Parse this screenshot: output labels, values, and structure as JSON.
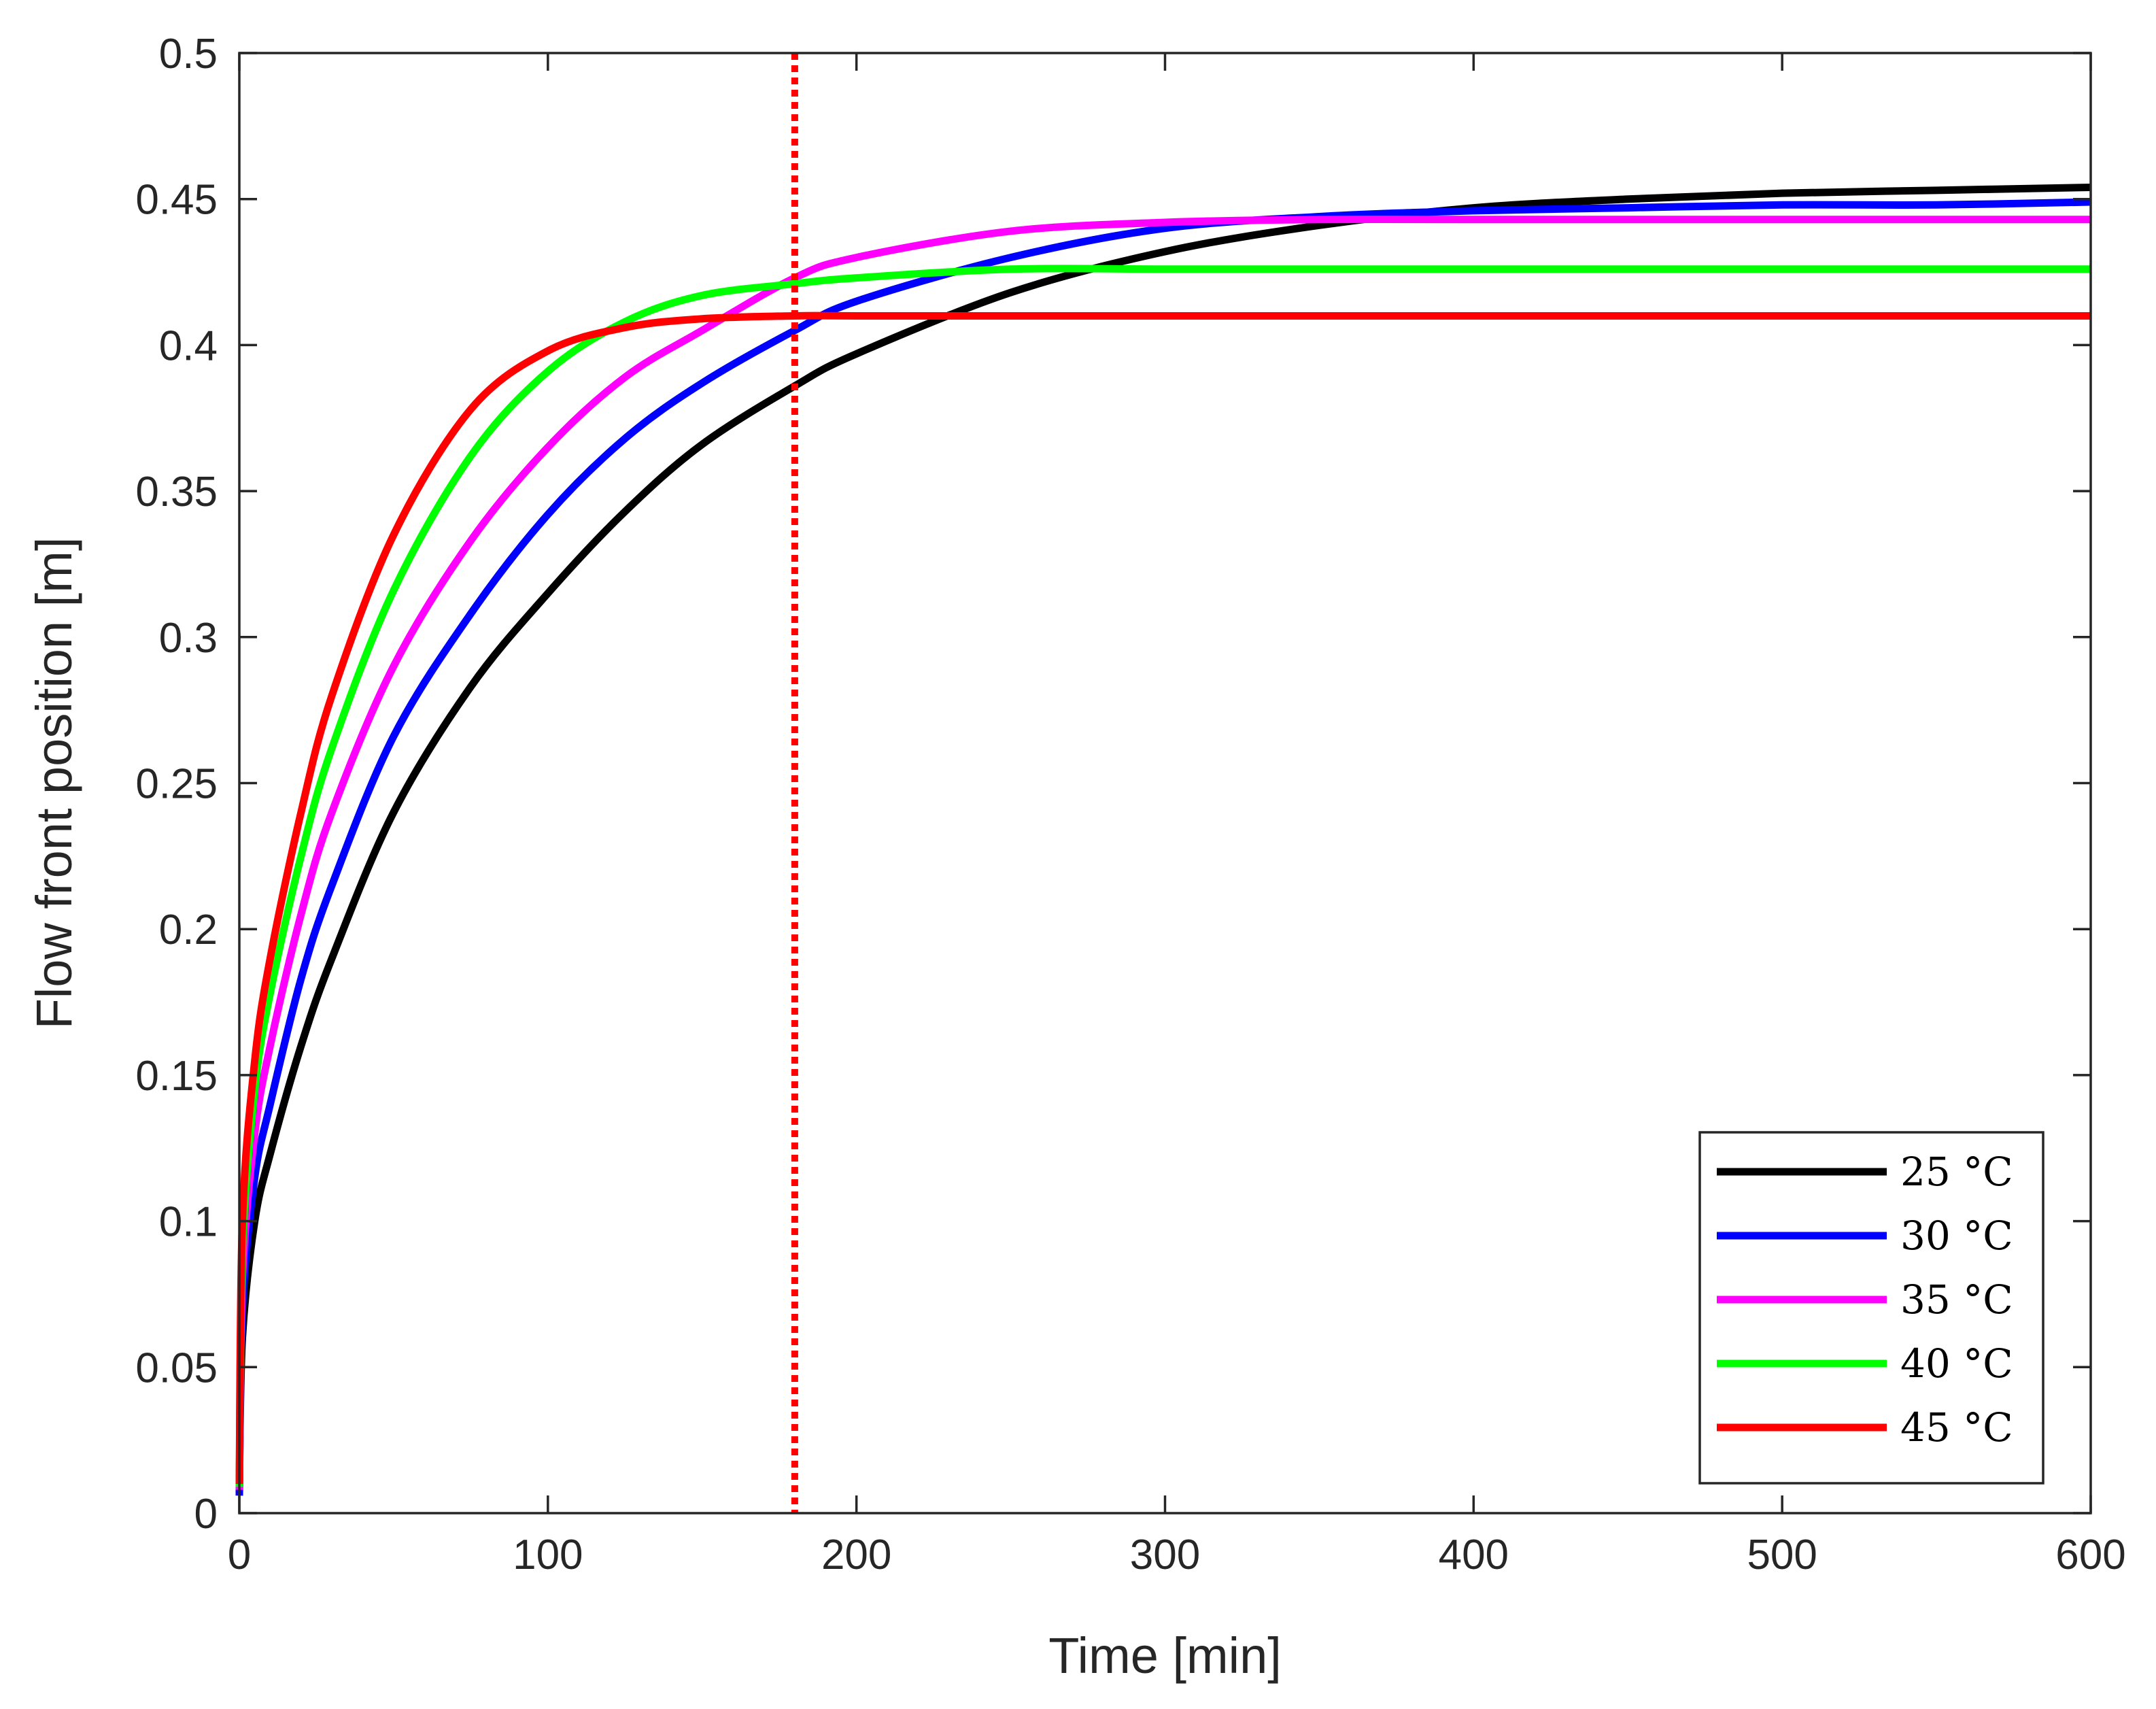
{
  "chart_data": {
    "type": "line",
    "title": "",
    "xlabel": "Time [min]",
    "ylabel": "Flow front position [m]",
    "xlim": [
      0,
      600
    ],
    "ylim": [
      0,
      0.5
    ],
    "xticks": [
      0,
      100,
      200,
      300,
      400,
      500,
      600
    ],
    "xtick_labels": [
      "0",
      "100",
      "200",
      "300",
      "400",
      "500",
      "600"
    ],
    "yticks": [
      0,
      0.05,
      0.1,
      0.15,
      0.2,
      0.25,
      0.3,
      0.35,
      0.4,
      0.45,
      0.5
    ],
    "ytick_labels": [
      "0",
      "0.05",
      "0.1",
      "0.15",
      "0.2",
      "0.25",
      "0.3",
      "0.35",
      "0.4",
      "0.45",
      "0.5"
    ],
    "grid": false,
    "legend_position": "bottom-right",
    "vertical_reference_line": {
      "x": 180,
      "color": "#ff0000",
      "style": "dotted"
    },
    "series": [
      {
        "name": "25 °C",
        "color": "#000000",
        "x": [
          0,
          1,
          5,
          10,
          20,
          30,
          50,
          75,
          100,
          125,
          150,
          180,
          200,
          250,
          300,
          350,
          400,
          450,
          500,
          550,
          600
        ],
        "values": [
          0.007,
          0.06,
          0.1,
          0.123,
          0.16,
          0.19,
          0.24,
          0.283,
          0.315,
          0.343,
          0.366,
          0.386,
          0.397,
          0.418,
          0.432,
          0.441,
          0.447,
          0.45,
          0.452,
          0.453,
          0.454
        ]
      },
      {
        "name": "30 °C",
        "color": "#0000ff",
        "x": [
          0,
          1,
          5,
          10,
          20,
          30,
          50,
          75,
          100,
          125,
          150,
          180,
          200,
          250,
          300,
          350,
          400,
          450,
          500,
          550,
          600
        ],
        "values": [
          0.006,
          0.07,
          0.115,
          0.14,
          0.183,
          0.215,
          0.266,
          0.308,
          0.342,
          0.368,
          0.387,
          0.405,
          0.415,
          0.43,
          0.44,
          0.444,
          0.446,
          0.447,
          0.448,
          0.448,
          0.449
        ]
      },
      {
        "name": "35 °C",
        "color": "#ff00ff",
        "x": [
          0,
          1,
          5,
          10,
          20,
          30,
          50,
          75,
          100,
          125,
          150,
          180,
          200,
          250,
          300,
          350,
          400,
          450,
          500,
          550,
          600
        ],
        "values": [
          0.008,
          0.08,
          0.13,
          0.16,
          0.205,
          0.24,
          0.29,
          0.333,
          0.365,
          0.389,
          0.405,
          0.423,
          0.43,
          0.439,
          0.442,
          0.443,
          0.443,
          0.443,
          0.443,
          0.443,
          0.443
        ]
      },
      {
        "name": "40 °C",
        "color": "#00ff00",
        "x": [
          0,
          1,
          5,
          10,
          20,
          30,
          50,
          75,
          100,
          125,
          150,
          180,
          200,
          250,
          300,
          350,
          400,
          450,
          500,
          550,
          600
        ],
        "values": [
          0.009,
          0.09,
          0.145,
          0.178,
          0.225,
          0.262,
          0.316,
          0.362,
          0.391,
          0.408,
          0.417,
          0.421,
          0.423,
          0.426,
          0.426,
          0.426,
          0.426,
          0.426,
          0.426,
          0.426,
          0.426
        ]
      },
      {
        "name": "45 °C",
        "color": "#ff0000",
        "x": [
          0,
          1,
          5,
          10,
          20,
          30,
          50,
          75,
          100,
          125,
          150,
          180,
          200,
          250,
          300,
          350,
          400,
          450,
          500,
          550,
          600
        ],
        "values": [
          0.01,
          0.1,
          0.155,
          0.19,
          0.24,
          0.28,
          0.335,
          0.378,
          0.398,
          0.406,
          0.409,
          0.41,
          0.41,
          0.41,
          0.41,
          0.41,
          0.41,
          0.41,
          0.41,
          0.41,
          0.41
        ]
      }
    ]
  }
}
